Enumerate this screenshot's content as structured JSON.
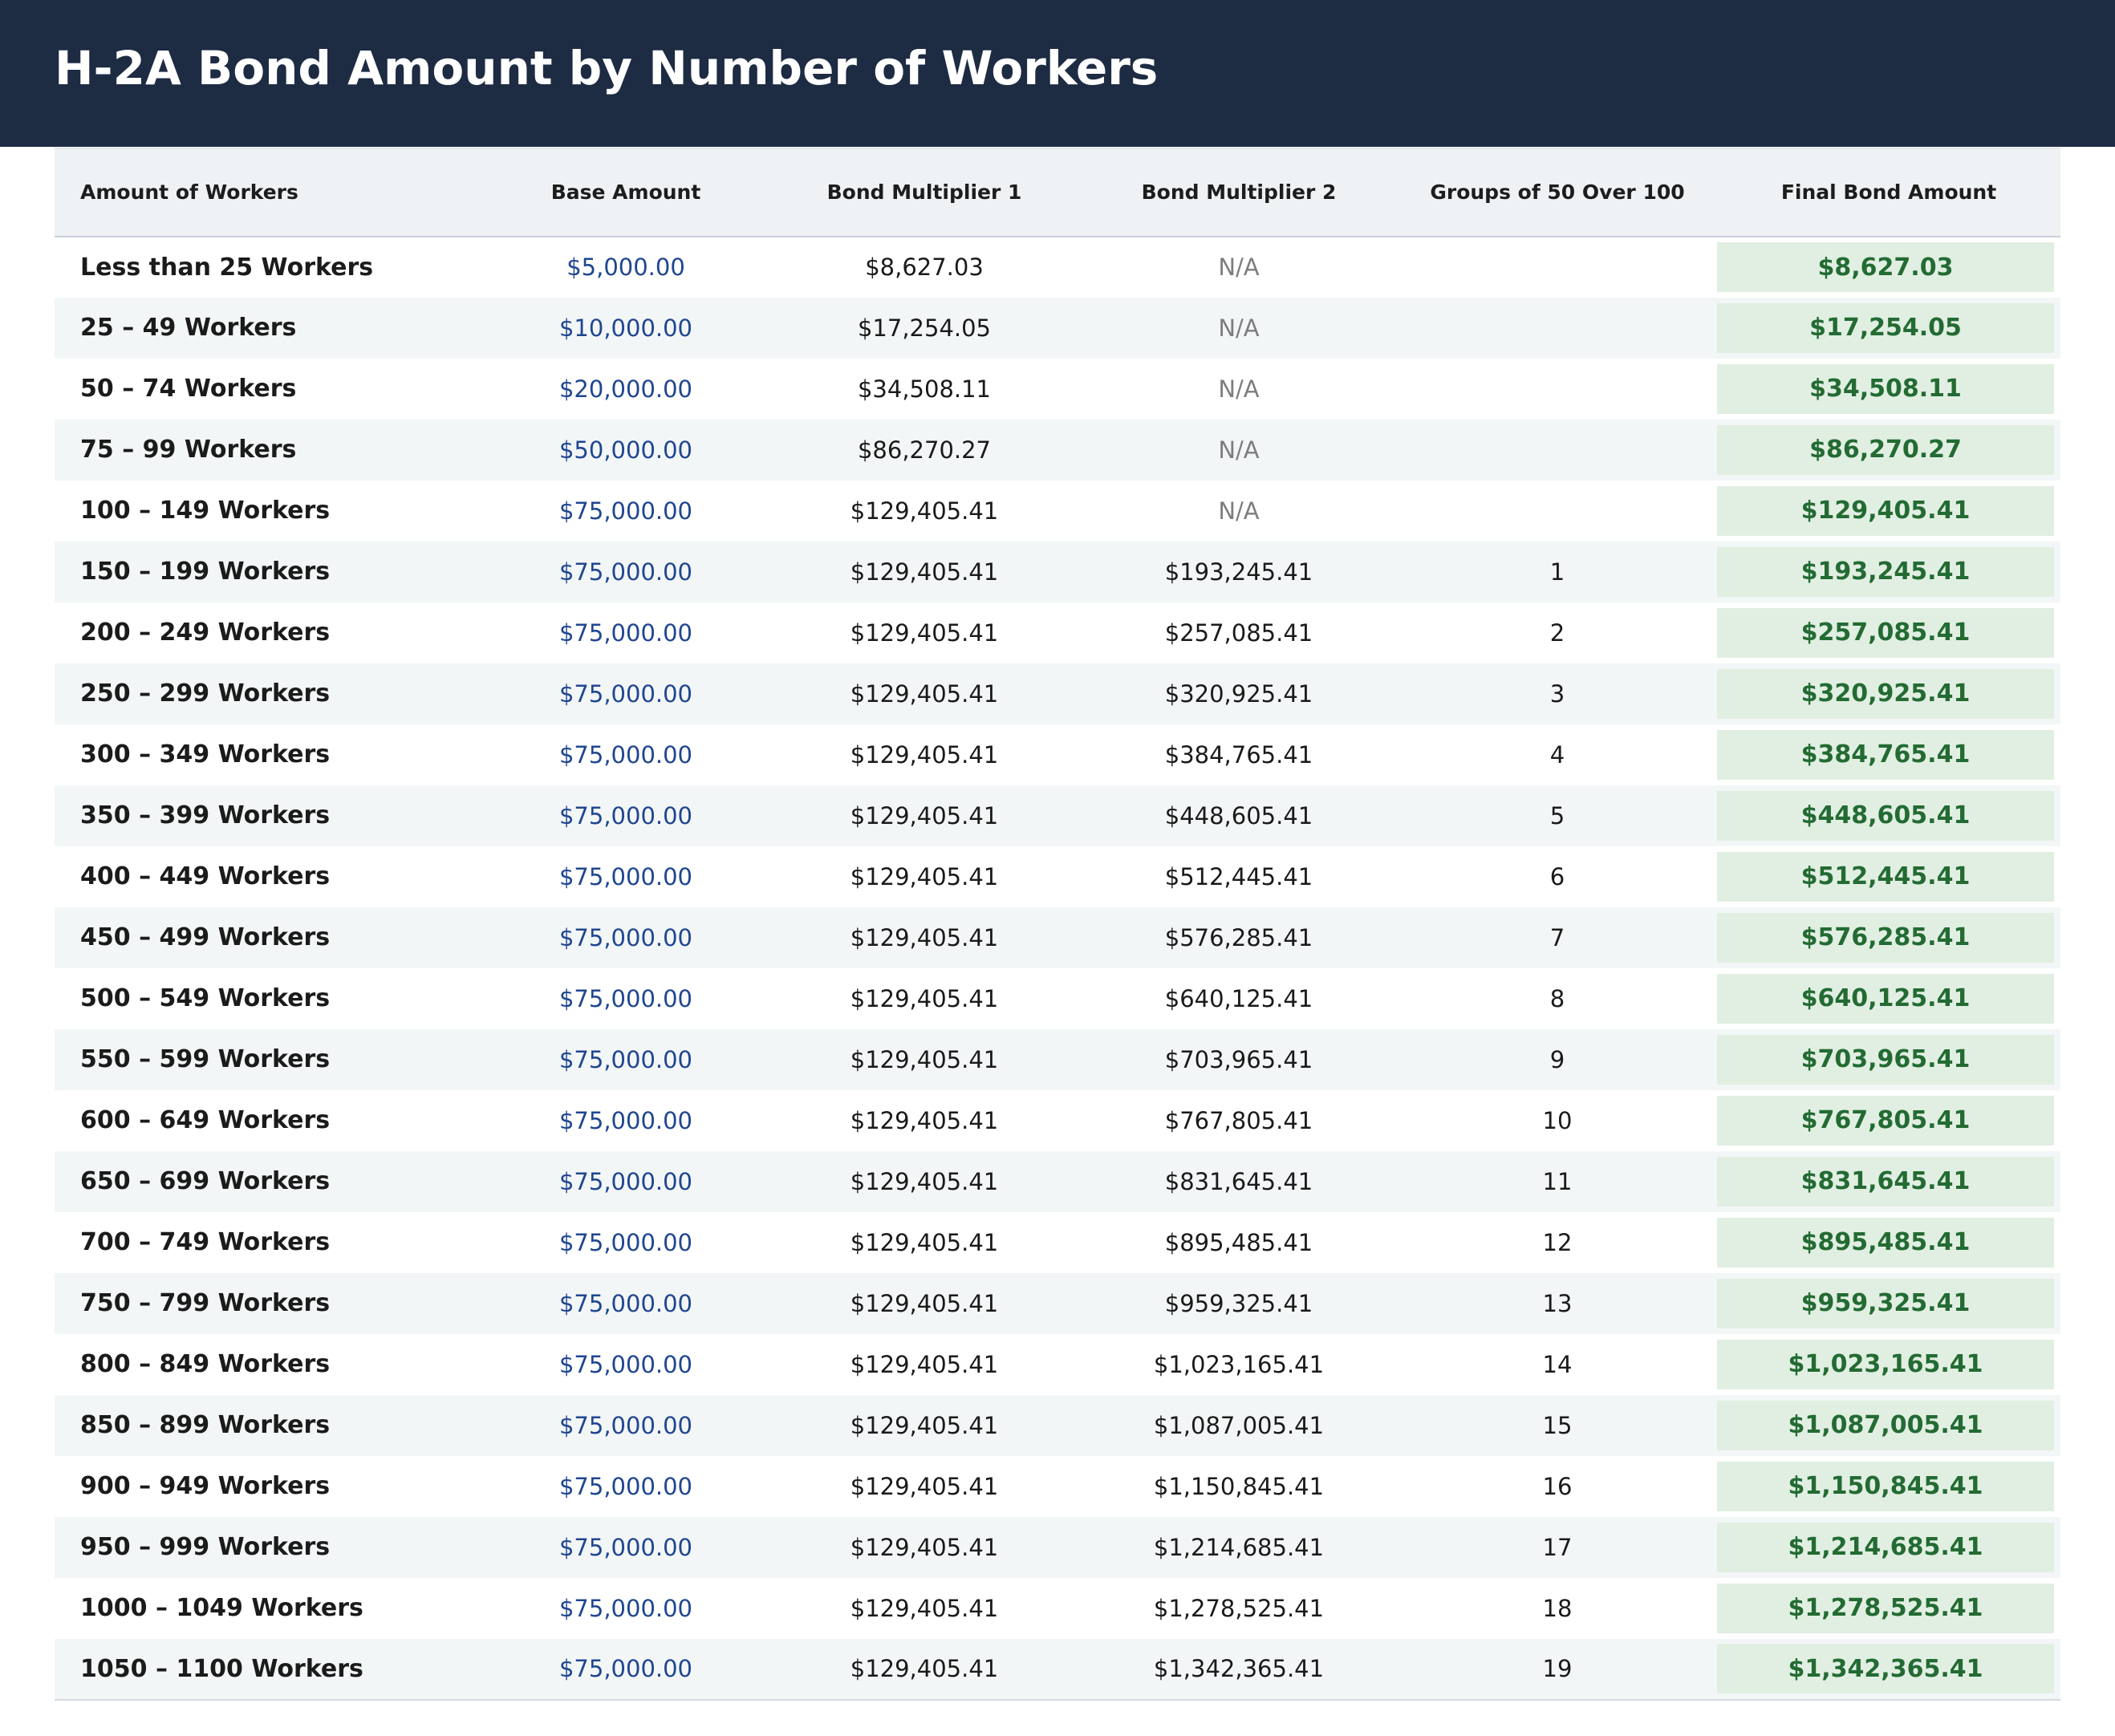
{
  "title": "H-2A Bond Amount by Number of Workers",
  "columns": [
    "Amount of Workers",
    "Base Amount",
    "Bond Multiplier 1",
    "Bond Multiplier 2",
    "Groups of 50 Over 100",
    "Final Bond Amount"
  ],
  "rows": [
    {
      "workers": "Less than 25 Workers",
      "base": "$5,000.00",
      "mult1": "$8,627.03",
      "mult2": "N/A",
      "groups": "",
      "final": "$8,627.03"
    },
    {
      "workers": "25 – 49 Workers",
      "base": "$10,000.00",
      "mult1": "$17,254.05",
      "mult2": "N/A",
      "groups": "",
      "final": "$17,254.05"
    },
    {
      "workers": "50 – 74 Workers",
      "base": "$20,000.00",
      "mult1": "$34,508.11",
      "mult2": "N/A",
      "groups": "",
      "final": "$34,508.11"
    },
    {
      "workers": "75 – 99 Workers",
      "base": "$50,000.00",
      "mult1": "$86,270.27",
      "mult2": "N/A",
      "groups": "",
      "final": "$86,270.27"
    },
    {
      "workers": "100 – 149 Workers",
      "base": "$75,000.00",
      "mult1": "$129,405.41",
      "mult2": "N/A",
      "groups": "",
      "final": "$129,405.41"
    },
    {
      "workers": "150 – 199 Workers",
      "base": "$75,000.00",
      "mult1": "$129,405.41",
      "mult2": "$193,245.41",
      "groups": "1",
      "final": "$193,245.41"
    },
    {
      "workers": "200 – 249 Workers",
      "base": "$75,000.00",
      "mult1": "$129,405.41",
      "mult2": "$257,085.41",
      "groups": "2",
      "final": "$257,085.41"
    },
    {
      "workers": "250 – 299 Workers",
      "base": "$75,000.00",
      "mult1": "$129,405.41",
      "mult2": "$320,925.41",
      "groups": "3",
      "final": "$320,925.41"
    },
    {
      "workers": "300 – 349 Workers",
      "base": "$75,000.00",
      "mult1": "$129,405.41",
      "mult2": "$384,765.41",
      "groups": "4",
      "final": "$384,765.41"
    },
    {
      "workers": "350 – 399 Workers",
      "base": "$75,000.00",
      "mult1": "$129,405.41",
      "mult2": "$448,605.41",
      "groups": "5",
      "final": "$448,605.41"
    },
    {
      "workers": "400 – 449 Workers",
      "base": "$75,000.00",
      "mult1": "$129,405.41",
      "mult2": "$512,445.41",
      "groups": "6",
      "final": "$512,445.41"
    },
    {
      "workers": "450 – 499 Workers",
      "base": "$75,000.00",
      "mult1": "$129,405.41",
      "mult2": "$576,285.41",
      "groups": "7",
      "final": "$576,285.41"
    },
    {
      "workers": "500 – 549 Workers",
      "base": "$75,000.00",
      "mult1": "$129,405.41",
      "mult2": "$640,125.41",
      "groups": "8",
      "final": "$640,125.41"
    },
    {
      "workers": "550 – 599 Workers",
      "base": "$75,000.00",
      "mult1": "$129,405.41",
      "mult2": "$703,965.41",
      "groups": "9",
      "final": "$703,965.41"
    },
    {
      "workers": "600 – 649 Workers",
      "base": "$75,000.00",
      "mult1": "$129,405.41",
      "mult2": "$767,805.41",
      "groups": "10",
      "final": "$767,805.41"
    },
    {
      "workers": "650 – 699 Workers",
      "base": "$75,000.00",
      "mult1": "$129,405.41",
      "mult2": "$831,645.41",
      "groups": "11",
      "final": "$831,645.41"
    },
    {
      "workers": "700 – 749 Workers",
      "base": "$75,000.00",
      "mult1": "$129,405.41",
      "mult2": "$895,485.41",
      "groups": "12",
      "final": "$895,485.41"
    },
    {
      "workers": "750 – 799 Workers",
      "base": "$75,000.00",
      "mult1": "$129,405.41",
      "mult2": "$959,325.41",
      "groups": "13",
      "final": "$959,325.41"
    },
    {
      "workers": "800 – 849 Workers",
      "base": "$75,000.00",
      "mult1": "$129,405.41",
      "mult2": "$1,023,165.41",
      "groups": "14",
      "final": "$1,023,165.41"
    },
    {
      "workers": "850 – 899 Workers",
      "base": "$75,000.00",
      "mult1": "$129,405.41",
      "mult2": "$1,087,005.41",
      "groups": "15",
      "final": "$1,087,005.41"
    },
    {
      "workers": "900 – 949 Workers",
      "base": "$75,000.00",
      "mult1": "$129,405.41",
      "mult2": "$1,150,845.41",
      "groups": "16",
      "final": "$1,150,845.41"
    },
    {
      "workers": "950 – 999 Workers",
      "base": "$75,000.00",
      "mult1": "$129,405.41",
      "mult2": "$1,214,685.41",
      "groups": "17",
      "final": "$1,214,685.41"
    },
    {
      "workers": "1000 – 1049 Workers",
      "base": "$75,000.00",
      "mult1": "$129,405.41",
      "mult2": "$1,278,525.41",
      "groups": "18",
      "final": "$1,278,525.41"
    },
    {
      "workers": "1050 – 1100 Workers",
      "base": "$75,000.00",
      "mult1": "$129,405.41",
      "mult2": "$1,342,365.41",
      "groups": "19",
      "final": "$1,342,365.41"
    }
  ],
  "colors": {
    "header_bg": "#1d2b43",
    "header_text": "#ffffff",
    "base_amount": "#1f4690",
    "na_text": "#7d7d7d",
    "final_bg": "#e1efe2",
    "final_text": "#236b33",
    "stripe": "#f3f6f7"
  }
}
